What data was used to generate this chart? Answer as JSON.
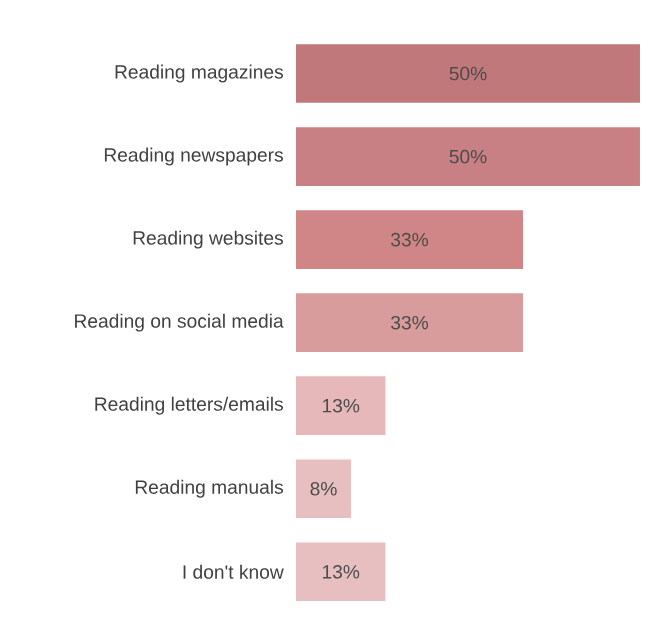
{
  "chart_data": {
    "type": "bar",
    "orientation": "horizontal",
    "categories": [
      "Reading magazines",
      "Reading newspapers",
      "Reading websites",
      "Reading on social media",
      "Reading letters/emails",
      "Reading manuals",
      "I don't know"
    ],
    "values": [
      50,
      50,
      33,
      33,
      13,
      8,
      13
    ],
    "value_labels": [
      "50%",
      "50%",
      "33%",
      "33%",
      "13%",
      "8%",
      "13%"
    ],
    "colors": [
      "#c0787b",
      "#c98084",
      "#d08586",
      "#d99c9c",
      "#e6b8b9",
      "#e8bfc0",
      "#e8bfc0"
    ]
  }
}
